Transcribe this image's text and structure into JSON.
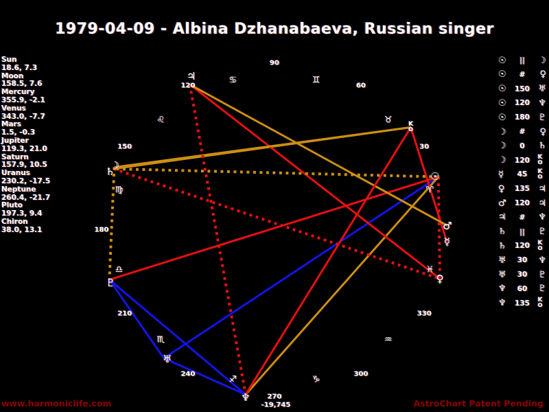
{
  "title": "1979-04-09 - Albina Dzhanabaeva, Russian singer",
  "footer": {
    "left": "www.harmoniclife.com",
    "right": "AstroChart Patent Pending"
  },
  "colors": {
    "background": "#000000",
    "text": "#ffffff",
    "red": "#e61010",
    "gold": "#cc8e14",
    "blue": "#1414e6",
    "footer": "#8b0000"
  },
  "chart_data": {
    "type": "astro-wheel",
    "title": "1979-04-09 - Albina Dzhanabaeva, Russian singer",
    "degree_labels": [
      30,
      60,
      90,
      120,
      150,
      180,
      210,
      240,
      270,
      300,
      330
    ],
    "bottom_note": "-19,745",
    "planets": [
      {
        "name": "Sun",
        "glyph": "☉",
        "lon": 18.6,
        "decl": 7.3,
        "pos_text": "18.6, 7.3"
      },
      {
        "name": "Moon",
        "glyph": "☽",
        "lon": 158.5,
        "decl": 7.6,
        "pos_text": "158.5, 7.6"
      },
      {
        "name": "Mercury",
        "glyph": "☿",
        "lon": 355.9,
        "decl": -2.1,
        "pos_text": "355.9, -2.1"
      },
      {
        "name": "Venus",
        "glyph": "♀",
        "lon": 343.0,
        "decl": -7.7,
        "pos_text": "343.0, -7.7"
      },
      {
        "name": "Mars",
        "glyph": "♂",
        "lon": 1.5,
        "decl": -0.3,
        "pos_text": "1.5, -0.3"
      },
      {
        "name": "Jupiter",
        "glyph": "♃",
        "lon": 119.3,
        "decl": 21.0,
        "pos_text": "119.3, 21.0"
      },
      {
        "name": "Saturn",
        "glyph": "♄",
        "lon": 157.9,
        "decl": 10.5,
        "pos_text": "157.9, 10.5"
      },
      {
        "name": "Uranus",
        "glyph": "♅",
        "lon": 230.2,
        "decl": -17.5,
        "pos_text": "230.2, -17.5"
      },
      {
        "name": "Neptune",
        "glyph": "♆",
        "lon": 260.4,
        "decl": -21.7,
        "pos_text": "260.4, -21.7"
      },
      {
        "name": "Pluto",
        "glyph": "♇",
        "lon": 197.3,
        "decl": 9.4,
        "pos_text": "197.3, 9.4"
      },
      {
        "name": "Chiron",
        "glyph": "chiron-key",
        "lon": 38.0,
        "decl": 13.1,
        "pos_text": "38.0, 13.1"
      }
    ],
    "signs": [
      {
        "name": "Aries",
        "glyph": "♈",
        "mid": 15
      },
      {
        "name": "Taurus",
        "glyph": "♉",
        "mid": 45
      },
      {
        "name": "Gemini",
        "glyph": "♊",
        "mid": 75
      },
      {
        "name": "Cancer",
        "glyph": "♋",
        "mid": 105
      },
      {
        "name": "Leo",
        "glyph": "♌",
        "mid": 135
      },
      {
        "name": "Virgo",
        "glyph": "♍",
        "mid": 165
      },
      {
        "name": "Libra",
        "glyph": "♎",
        "mid": 195
      },
      {
        "name": "Scorpio",
        "glyph": "♏",
        "mid": 225
      },
      {
        "name": "Sagittarius",
        "glyph": "♐",
        "mid": 255
      },
      {
        "name": "Capricorn",
        "glyph": "♑",
        "mid": 285
      },
      {
        "name": "Aquarius",
        "glyph": "♒",
        "mid": 315
      },
      {
        "name": "Pisces",
        "glyph": "♓",
        "mid": 345
      }
    ],
    "aspects": [
      {
        "a": "Sun",
        "label": "||",
        "type": "parallel",
        "b": "Moon"
      },
      {
        "a": "Sun",
        "label": "#",
        "type": "contraparallel",
        "b": "Venus"
      },
      {
        "a": "Sun",
        "label": "150",
        "type": "150",
        "b": "Uranus"
      },
      {
        "a": "Sun",
        "label": "120",
        "type": "120",
        "b": "Neptune"
      },
      {
        "a": "Sun",
        "label": "180",
        "type": "180",
        "b": "Pluto"
      },
      {
        "a": "Moon",
        "label": "#",
        "type": "contraparallel",
        "b": "Venus"
      },
      {
        "a": "Moon",
        "label": "0",
        "type": "0",
        "b": "Saturn"
      },
      {
        "a": "Moon",
        "label": "120",
        "type": "120",
        "b": "Chiron"
      },
      {
        "a": "Mercury",
        "label": "45",
        "type": "45",
        "b": "Chiron"
      },
      {
        "a": "Venus",
        "label": "135",
        "type": "135",
        "b": "Jupiter"
      },
      {
        "a": "Mars",
        "label": "120",
        "type": "120",
        "b": "Jupiter"
      },
      {
        "a": "Jupiter",
        "label": "#",
        "type": "contraparallel",
        "b": "Neptune"
      },
      {
        "a": "Saturn",
        "label": "||",
        "type": "parallel",
        "b": "Pluto"
      },
      {
        "a": "Saturn",
        "label": "120",
        "type": "120",
        "b": "Chiron"
      },
      {
        "a": "Uranus",
        "label": "30",
        "type": "30",
        "b": "Neptune"
      },
      {
        "a": "Uranus",
        "label": "30",
        "type": "30",
        "b": "Pluto"
      },
      {
        "a": "Neptune",
        "label": "60",
        "type": "60",
        "b": "Pluto"
      },
      {
        "a": "Neptune",
        "label": "135",
        "type": "135",
        "b": "Chiron"
      }
    ]
  }
}
